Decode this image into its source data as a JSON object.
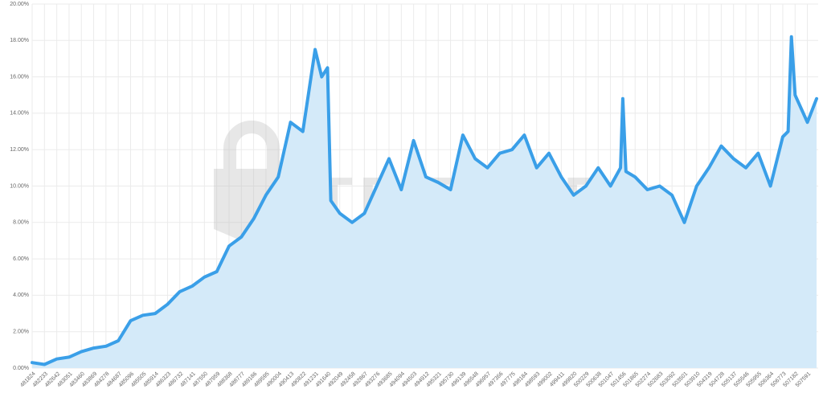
{
  "chart_data": {
    "type": "area",
    "watermark": "TREZOR",
    "x": [
      481824,
      482233,
      482642,
      483051,
      483460,
      483869,
      484278,
      484687,
      485096,
      485505,
      485914,
      486323,
      486732,
      487141,
      487550,
      487959,
      488368,
      488777,
      489186,
      489595,
      490004,
      490413,
      490822,
      491231,
      491450,
      491640,
      491750,
      492049,
      492458,
      492867,
      493276,
      493685,
      494094,
      494503,
      494912,
      495321,
      495730,
      496139,
      496548,
      496957,
      497366,
      497775,
      498184,
      498593,
      499002,
      499411,
      499820,
      500229,
      500638,
      501047,
      501380,
      501456,
      501560,
      501865,
      502274,
      502683,
      503092,
      503501,
      503910,
      504319,
      504728,
      505137,
      505546,
      505955,
      506364,
      506773,
      506950,
      507060,
      507182,
      507591,
      507897
    ],
    "values": [
      0.3,
      0.2,
      0.5,
      0.6,
      0.9,
      1.1,
      1.2,
      1.5,
      2.6,
      2.9,
      3.0,
      3.5,
      4.2,
      4.5,
      5.0,
      5.3,
      6.7,
      7.2,
      8.2,
      9.5,
      10.5,
      13.5,
      13.0,
      17.5,
      16.0,
      16.5,
      9.2,
      8.5,
      8.0,
      8.5,
      10.0,
      11.5,
      9.8,
      12.5,
      10.5,
      10.2,
      9.8,
      12.8,
      11.5,
      11.0,
      11.8,
      12.0,
      12.8,
      11.0,
      11.8,
      10.5,
      9.5,
      10.0,
      11.0,
      10.0,
      11.0,
      14.8,
      10.8,
      10.5,
      9.8,
      10.0,
      9.5,
      8.0,
      10.0,
      11.0,
      12.2,
      11.5,
      11.0,
      11.8,
      10.0,
      12.7,
      13.0,
      18.2,
      15.0,
      13.5,
      14.8
    ],
    "color": "#3a9fe8",
    "fill": "#d4eaf9",
    "xlim": [
      481824,
      507950
    ],
    "xticks": [
      481824,
      482233,
      482642,
      483051,
      483460,
      483869,
      484278,
      484687,
      485096,
      485505,
      485914,
      486323,
      486732,
      487141,
      487550,
      487959,
      488368,
      488777,
      489186,
      489595,
      490004,
      490413,
      490822,
      491231,
      491640,
      492049,
      492458,
      492867,
      493276,
      493685,
      494094,
      494503,
      494912,
      495321,
      495730,
      496139,
      496548,
      496957,
      497366,
      497775,
      498184,
      498593,
      499002,
      499411,
      499820,
      500229,
      500638,
      501047,
      501456,
      501865,
      502274,
      502683,
      503092,
      503501,
      503910,
      504319,
      504728,
      505137,
      505546,
      505955,
      506364,
      506773,
      507182,
      507591
    ],
    "ylim": [
      0,
      20
    ],
    "yticks": [
      {
        "value": 0,
        "label": "0.00%"
      },
      {
        "value": 2,
        "label": "2.00%"
      },
      {
        "value": 4,
        "label": "4.00%"
      },
      {
        "value": 6,
        "label": "6.00%"
      },
      {
        "value": 8,
        "label": "8.00%"
      },
      {
        "value": 10,
        "label": "10.00%"
      },
      {
        "value": 12,
        "label": "12.00%"
      },
      {
        "value": 14,
        "label": "14.00%"
      },
      {
        "value": 16,
        "label": "16.00%"
      },
      {
        "value": 18,
        "label": "18.00%"
      },
      {
        "value": 20,
        "label": "20.00%"
      }
    ],
    "grid": true
  }
}
